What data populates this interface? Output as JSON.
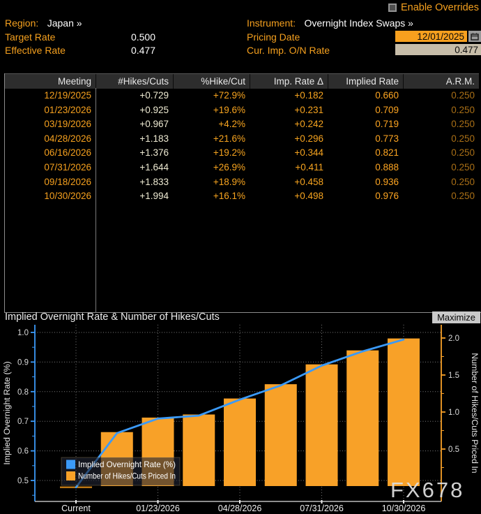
{
  "overrides": {
    "label": "Enable Overrides"
  },
  "header": {
    "region_label": "Region:",
    "region_value": "Japan »",
    "instrument_label": "Instrument:",
    "instrument_value": "Overnight Index Swaps »",
    "target_rate_label": "Target Rate",
    "target_rate_value": "0.500",
    "effective_rate_label": "Effective Rate",
    "effective_rate_value": "0.477",
    "pricing_date_label": "Pricing Date",
    "pricing_date_value": "12/01/2025",
    "cur_imp_label": "Cur. Imp. O/N Rate",
    "cur_imp_value": "0.477"
  },
  "table": {
    "columns": [
      "Meeting",
      "#Hikes/Cuts",
      "%Hike/Cut",
      "Imp. Rate Δ",
      "Implied Rate",
      "A.R.M."
    ],
    "rows": [
      [
        "12/19/2025",
        "+0.729",
        "+72.9%",
        "+0.182",
        "0.660",
        "0.250"
      ],
      [
        "01/23/2026",
        "+0.925",
        "+19.6%",
        "+0.231",
        "0.709",
        "0.250"
      ],
      [
        "03/19/2026",
        "+0.967",
        "+4.2%",
        "+0.242",
        "0.719",
        "0.250"
      ],
      [
        "04/28/2026",
        "+1.183",
        "+21.6%",
        "+0.296",
        "0.773",
        "0.250"
      ],
      [
        "06/16/2026",
        "+1.376",
        "+19.2%",
        "+0.344",
        "0.821",
        "0.250"
      ],
      [
        "07/31/2026",
        "+1.644",
        "+26.9%",
        "+0.411",
        "0.888",
        "0.250"
      ],
      [
        "09/18/2026",
        "+1.833",
        "+18.9%",
        "+0.458",
        "0.936",
        "0.250"
      ],
      [
        "10/30/2026",
        "+1.994",
        "+16.1%",
        "+0.498",
        "0.976",
        "0.250"
      ]
    ]
  },
  "chart": {
    "title": "Implied Overnight Rate & Number of Hikes/Cuts",
    "maximize_label": "Maximize",
    "watermark": "FX678"
  },
  "chart_data": {
    "type": "combo-bar-line",
    "categories": [
      "Current",
      "12/19/2025",
      "01/23/2026",
      "03/19/2026",
      "04/28/2026",
      "06/16/2026",
      "07/31/2026",
      "09/18/2026",
      "10/30/2026"
    ],
    "series": [
      {
        "name": "Implied Overnight Rate (%)",
        "type": "line",
        "axis": "left",
        "color": "#3B9AF8",
        "values": [
          0.477,
          0.66,
          0.709,
          0.719,
          0.773,
          0.821,
          0.888,
          0.936,
          0.976
        ]
      },
      {
        "name": "Number of Hikes/Cuts Priced In",
        "type": "bar",
        "axis": "right",
        "color": "#F8A128",
        "values": [
          null,
          0.729,
          0.925,
          0.967,
          1.183,
          1.376,
          1.644,
          1.833,
          1.994
        ]
      }
    ],
    "current_marker": {
      "category": "Current",
      "value": 0.477,
      "color": "#B97515"
    },
    "left_axis": {
      "label": "Implied Overnight Rate (%)",
      "color": "#3B9AF8",
      "ticks": [
        0.5,
        0.6,
        0.7,
        0.8,
        0.9,
        1.0
      ],
      "minor_step": 0.05,
      "range": [
        0.42925,
        1.02594
      ]
    },
    "right_axis": {
      "label": "Number of Hikes/Cuts Priced In",
      "color": "#F8A128",
      "ticks": [
        0.5,
        1.0,
        1.5,
        2.0
      ],
      "minor_step": 0.25,
      "range": [
        -0.20755,
        2.1792
      ]
    },
    "x_axis": {
      "labels": [
        "Current",
        "01/23/2026",
        "04/28/2026",
        "07/31/2026",
        "10/30/2026"
      ],
      "label_indices": [
        0,
        2,
        4,
        6,
        8
      ]
    },
    "grid": {
      "h_values": [
        0.5,
        0.6,
        0.7,
        0.8,
        0.9,
        1.0
      ],
      "v_indices": [
        0,
        2,
        4,
        6,
        8
      ]
    },
    "legend": {
      "position": "bottom-left",
      "entries": [
        {
          "label": "Implied Overnight Rate (%)",
          "color": "#3B9AF8"
        },
        {
          "label": "Number of Hikes/Cuts Priced In",
          "color": "#F8A128"
        }
      ]
    }
  }
}
